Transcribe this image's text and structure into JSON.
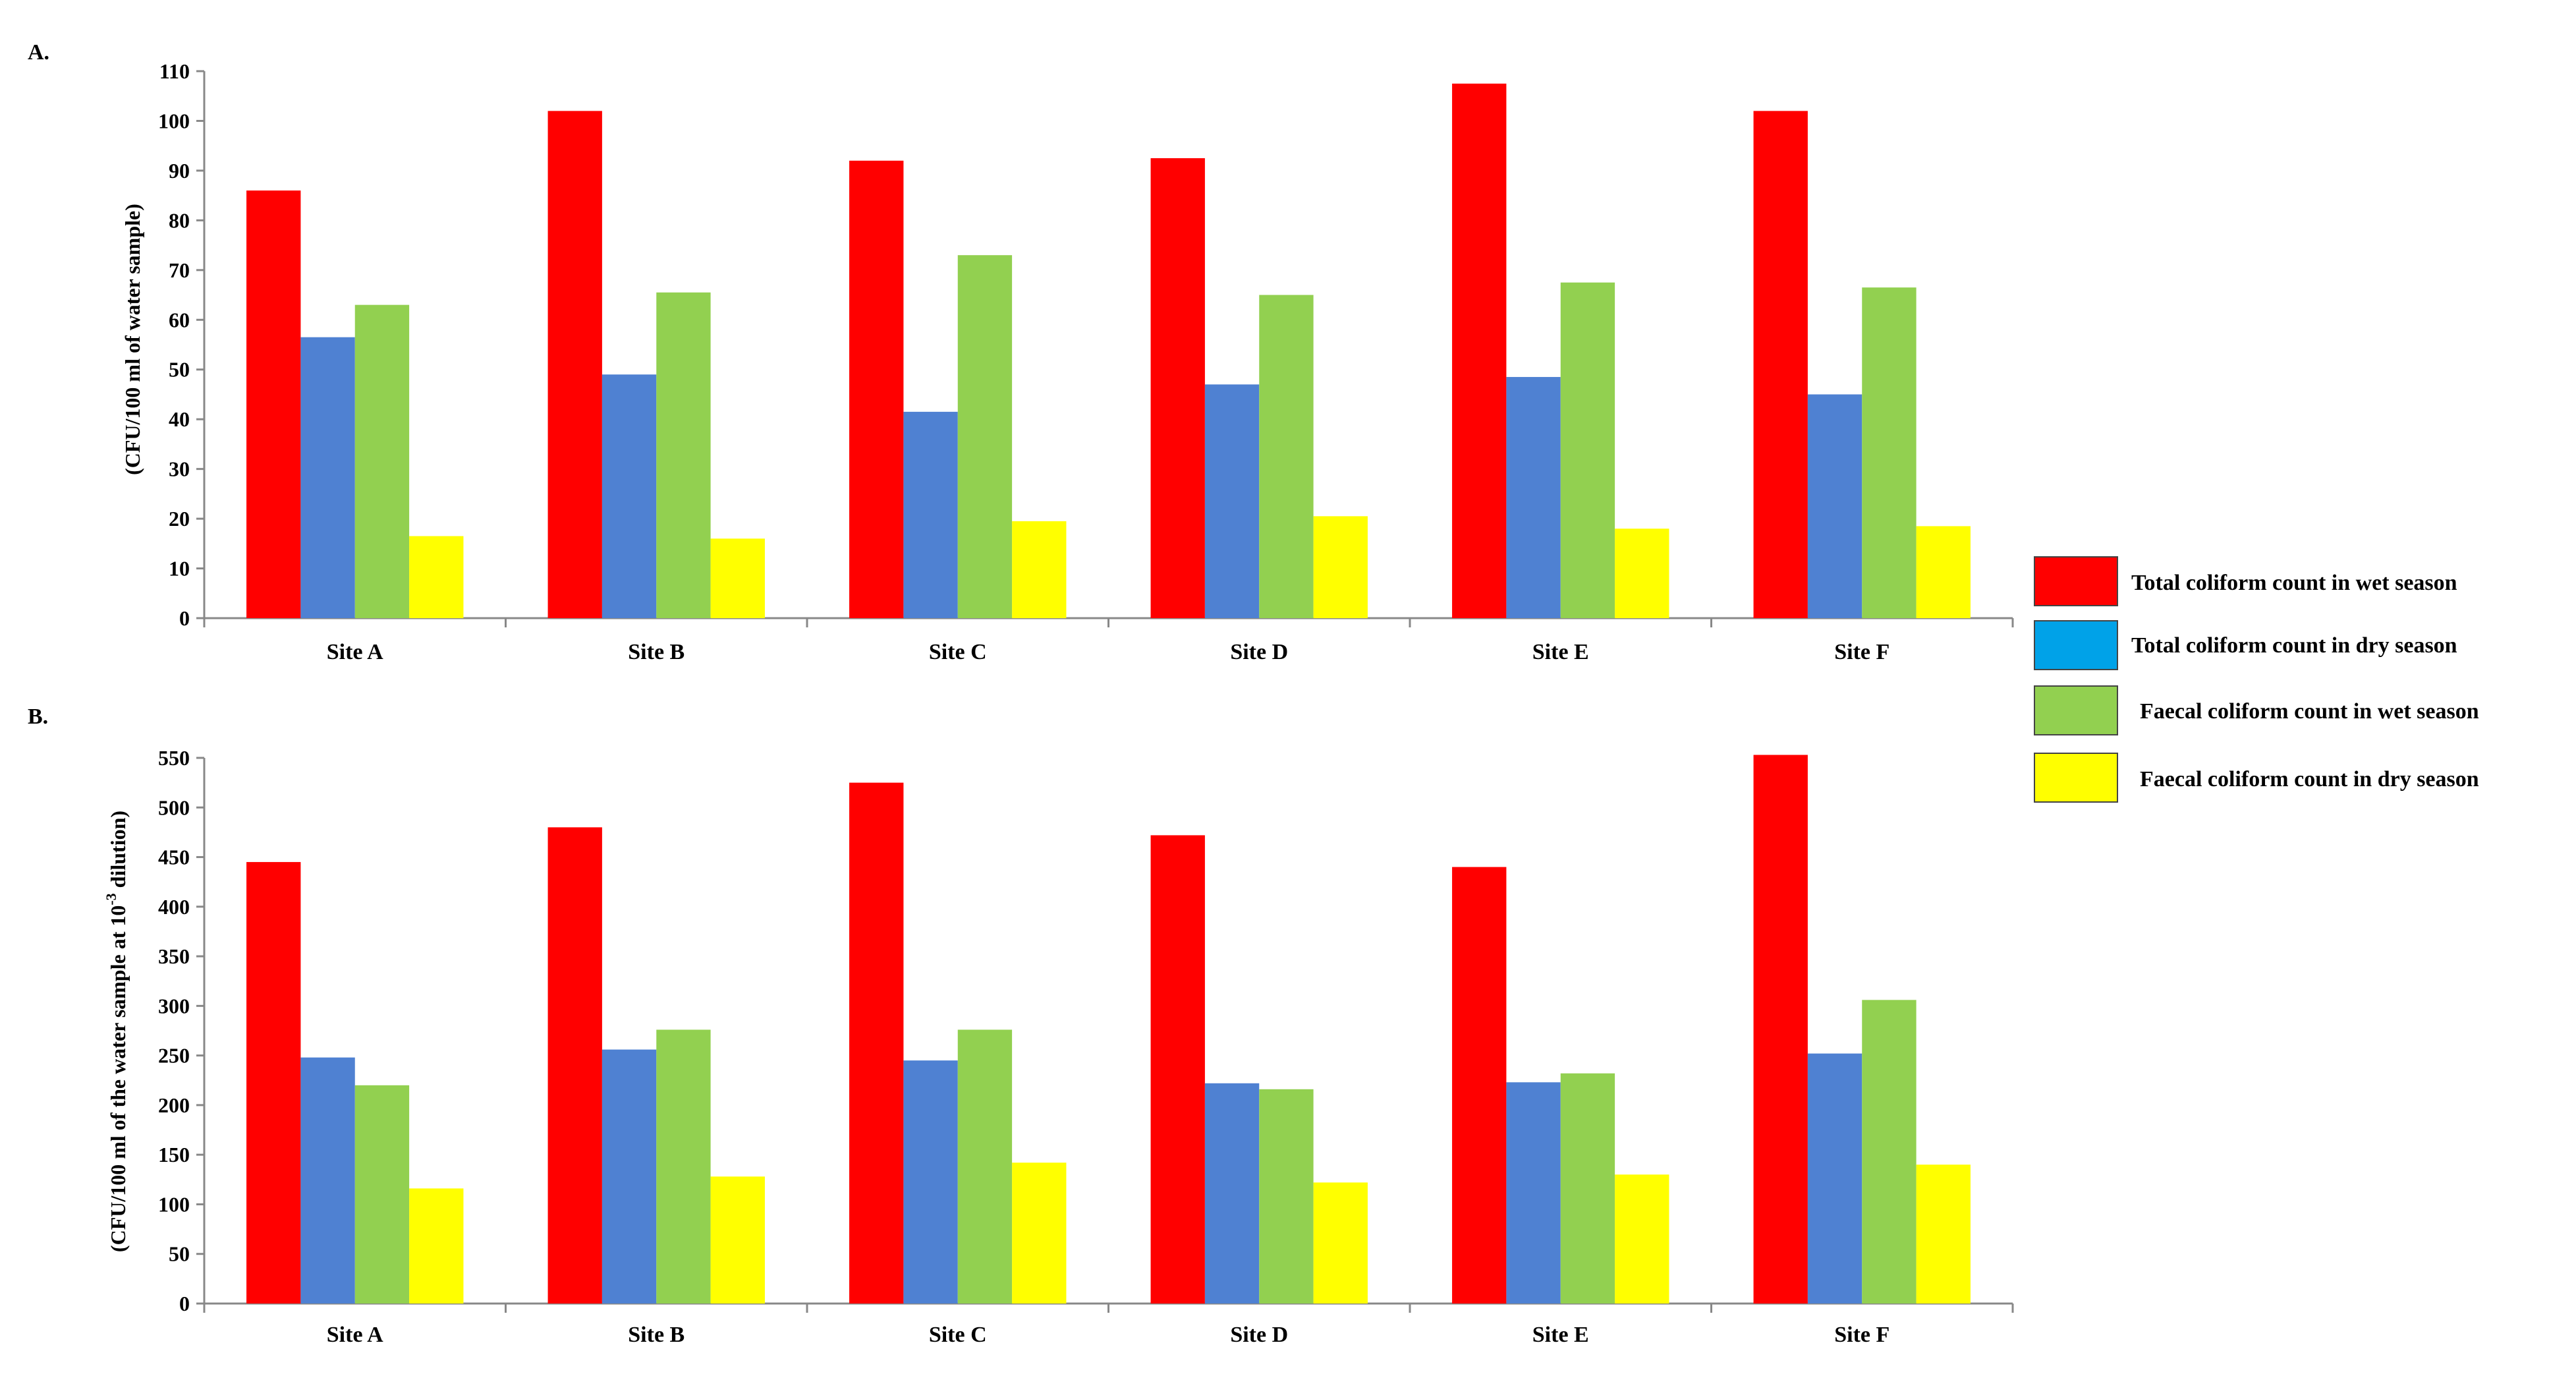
{
  "legend": [
    {
      "label": "Total coliform count in wet season",
      "color": "#ff0000"
    },
    {
      "label": "Total coliform count in dry season",
      "color": "#00a2e8"
    },
    {
      "label": "Faecal coliform count in wet season",
      "color": "#92d050"
    },
    {
      "label": "Faecal coliform count in dry season",
      "color": "#ffff00"
    }
  ],
  "bar_colors": [
    "#ff0000",
    "#4f81d2",
    "#92d050",
    "#ffff00"
  ],
  "chart_data": [
    {
      "type": "bar",
      "panel_label": "A.",
      "title": "",
      "ylabel": "(CFU/100 ml of water sample)",
      "xlabel": "",
      "ylim": [
        0,
        110
      ],
      "yticks": [
        0,
        10,
        20,
        30,
        40,
        50,
        60,
        70,
        80,
        90,
        100,
        110
      ],
      "categories": [
        "Site A",
        "Site B",
        "Site C",
        "Site D",
        "Site E",
        "Site F"
      ],
      "series": [
        {
          "name": "Total coliform count in wet season",
          "values": [
            86,
            102,
            92,
            92.5,
            107.5,
            102
          ]
        },
        {
          "name": "Total coliform count in dry season",
          "values": [
            56.5,
            49,
            41.5,
            47,
            48.5,
            45
          ]
        },
        {
          "name": "Faecal coliform count in wet season",
          "values": [
            63,
            65.5,
            73,
            65,
            67.5,
            66.5
          ]
        },
        {
          "name": "Faecal coliform count in dry season",
          "values": [
            16.5,
            16,
            19.5,
            20.5,
            18,
            18.5
          ]
        }
      ],
      "legend_position": "right"
    },
    {
      "type": "bar",
      "panel_label": "B.",
      "title": "",
      "ylabel": "(CFU/100 ml of the water sample at 10",
      "ylabel_sup": "-3",
      "ylabel_end": " dilution)",
      "xlabel": "",
      "ylim": [
        0,
        550
      ],
      "yticks": [
        0,
        50,
        100,
        150,
        200,
        250,
        300,
        350,
        400,
        450,
        500,
        550
      ],
      "categories": [
        "Site A",
        "Site B",
        "Site C",
        "Site D",
        "Site E",
        "Site F"
      ],
      "series": [
        {
          "name": "Total coliform count in wet season",
          "values": [
            445,
            480,
            525,
            472,
            440,
            553
          ]
        },
        {
          "name": "Total coliform count in dry season",
          "values": [
            248,
            256,
            245,
            222,
            223,
            252
          ]
        },
        {
          "name": "Faecal coliform count in wet season",
          "values": [
            220,
            276,
            276,
            216,
            232,
            306
          ]
        },
        {
          "name": "Faecal coliform count in dry season",
          "values": [
            116,
            128,
            142,
            122,
            130,
            140
          ]
        }
      ],
      "legend_position": "right"
    }
  ]
}
